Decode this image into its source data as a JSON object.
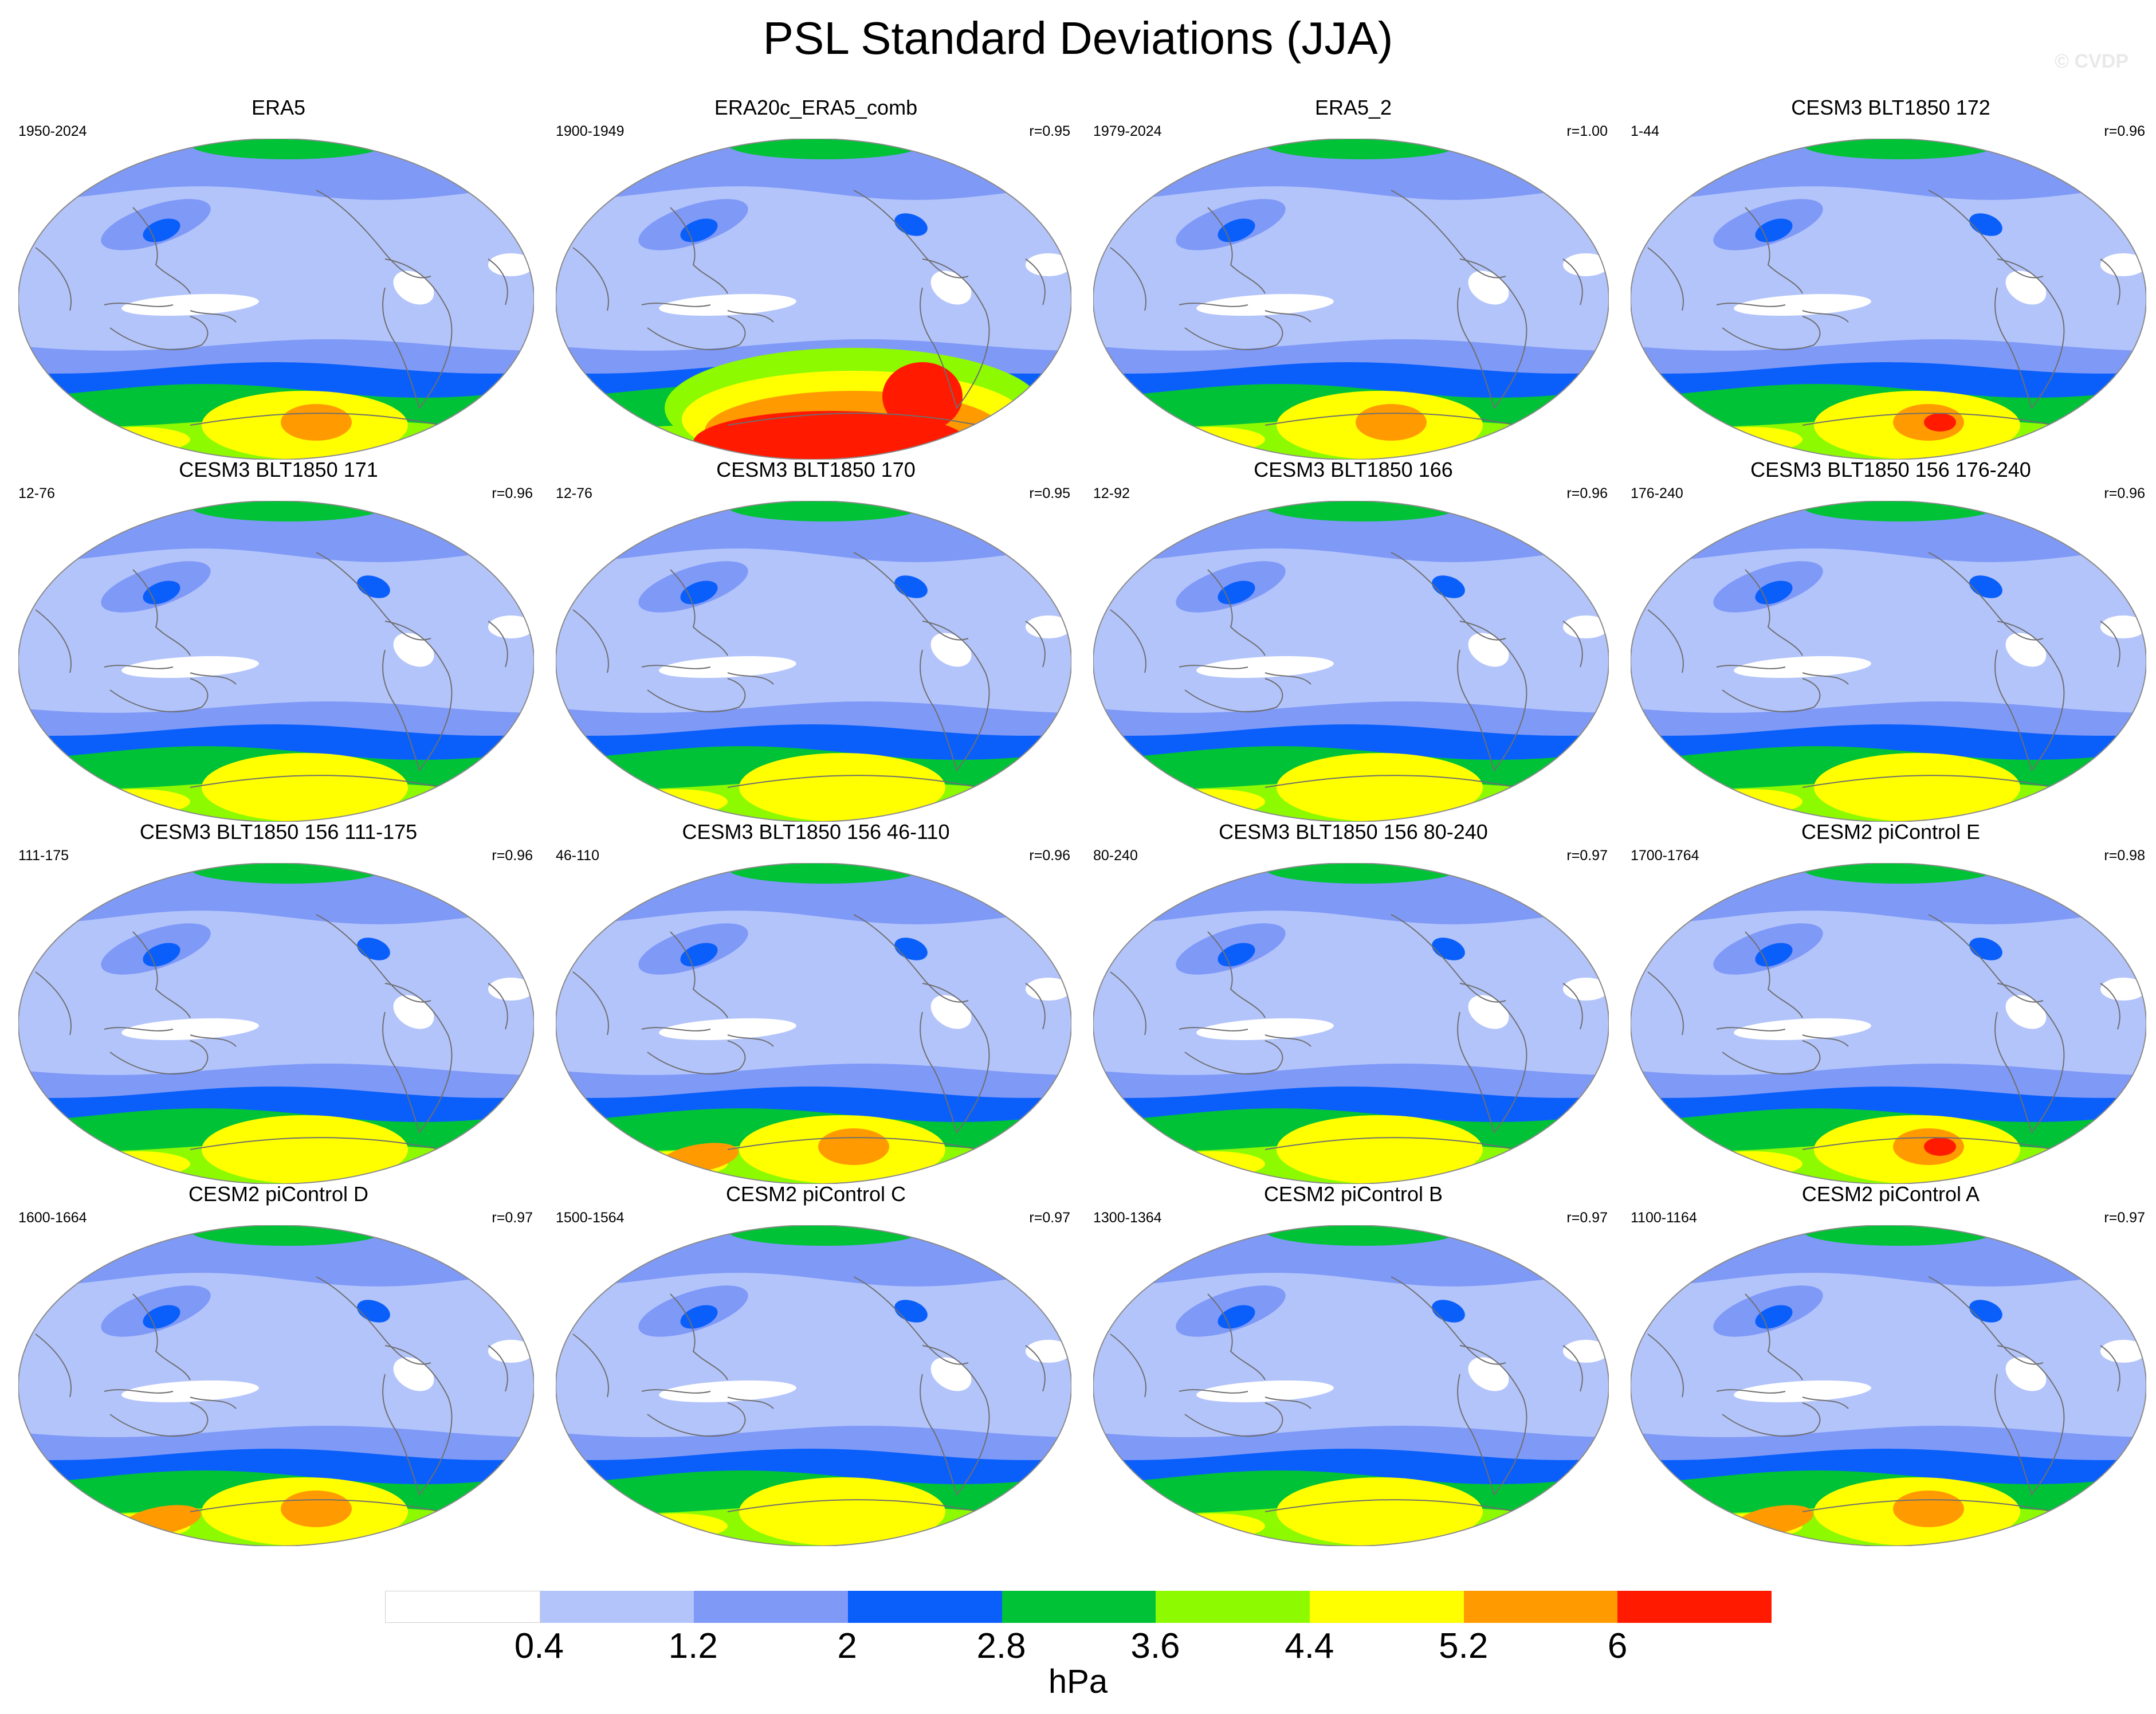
{
  "title": "PSL Standard Deviations (JJA)",
  "watermark": "© CVDP",
  "panels": [
    {
      "title": "ERA5",
      "period": "1950-2024",
      "corr": "",
      "pattern": "era5"
    },
    {
      "title": "ERA20c_ERA5_comb",
      "period": "1900-1949",
      "corr": "r=0.95",
      "pattern": "era20c"
    },
    {
      "title": "ERA5_2",
      "period": "1979-2024",
      "corr": "r=1.00",
      "pattern": "era5"
    },
    {
      "title": "CESM3 BLT1850 172",
      "period": "1-44",
      "corr": "r=0.96",
      "pattern": "strong"
    },
    {
      "title": "CESM3 BLT1850 171",
      "period": "12-76",
      "corr": "r=0.96",
      "pattern": "model"
    },
    {
      "title": "CESM3 BLT1850 170",
      "period": "12-76",
      "corr": "r=0.95",
      "pattern": "model"
    },
    {
      "title": "CESM3 BLT1850 166",
      "period": "12-92",
      "corr": "r=0.96",
      "pattern": "model"
    },
    {
      "title": "CESM3 BLT1850 156 176-240",
      "period": "176-240",
      "corr": "r=0.96",
      "pattern": "model"
    },
    {
      "title": "CESM3 BLT1850 156 111-175",
      "period": "111-175",
      "corr": "r=0.96",
      "pattern": "model"
    },
    {
      "title": "CESM3 BLT1850 156 46-110",
      "period": "46-110",
      "corr": "r=0.96",
      "pattern": "orange"
    },
    {
      "title": "CESM3 BLT1850 156 80-240",
      "period": "80-240",
      "corr": "r=0.97",
      "pattern": "model"
    },
    {
      "title": "CESM2 piControl E",
      "period": "1700-1764",
      "corr": "r=0.98",
      "pattern": "strong"
    },
    {
      "title": "CESM2 piControl D",
      "period": "1600-1664",
      "corr": "r=0.97",
      "pattern": "orange"
    },
    {
      "title": "CESM2 piControl C",
      "period": "1500-1564",
      "corr": "r=0.97",
      "pattern": "model"
    },
    {
      "title": "CESM2 piControl B",
      "period": "1300-1364",
      "corr": "r=0.97",
      "pattern": "model"
    },
    {
      "title": "CESM2 piControl A",
      "period": "1100-1164",
      "corr": "r=0.97",
      "pattern": "orange"
    }
  ],
  "colorbar": {
    "colors": [
      "#ffffff",
      "#b3c4fb",
      "#7f99f7",
      "#0a5ffb",
      "#00c237",
      "#8dfa00",
      "#ffff00",
      "#ff9b00",
      "#ff1a00"
    ],
    "ticks": [
      "0.4",
      "1.2",
      "2",
      "2.8",
      "3.6",
      "4.4",
      "5.2",
      "6"
    ],
    "units": "hPa"
  }
}
